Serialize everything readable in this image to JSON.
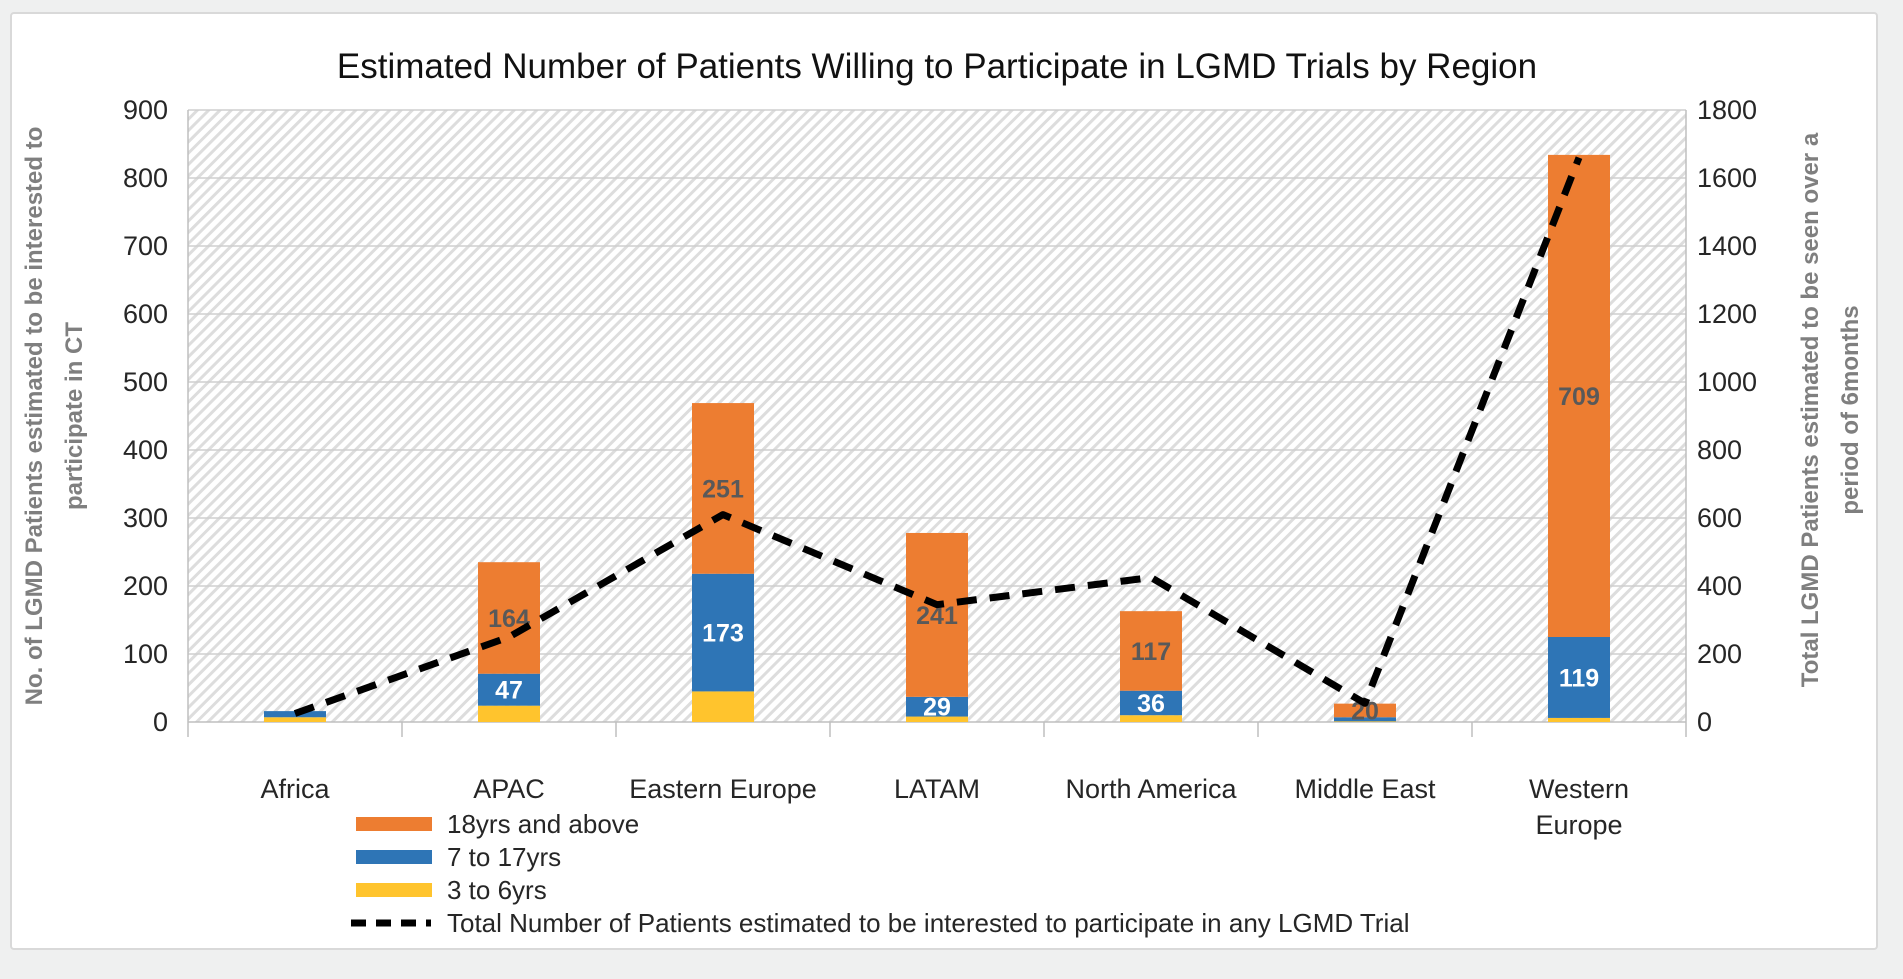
{
  "window": {
    "outer_background": "#EFF0F0",
    "card_background": "#FFFFFF",
    "card_border": "#D9D9D9"
  },
  "chart_data": {
    "type": "combo",
    "subtype": [
      "stacked-bar",
      "line"
    ],
    "title": "Estimated Number of Patients Willing to Participate in LGMD Trials by Region",
    "categories": [
      "Africa",
      "APAC",
      "Eastern Europe",
      "LATAM",
      "North America",
      "Middle East",
      "Western Europe"
    ],
    "category_wrap": [
      false,
      false,
      false,
      false,
      false,
      false,
      true
    ],
    "bar_series": [
      {
        "name": "3 to 6yrs",
        "color": "#FFC42D",
        "axis": "left",
        "values": [
          7,
          24,
          45,
          8,
          10,
          1,
          6
        ],
        "data_labels": [
          "",
          "",
          "",
          "",
          "",
          "",
          ""
        ],
        "label_color": "#595959"
      },
      {
        "name": "7 to 17yrs",
        "color": "#2E75B6",
        "axis": "left",
        "values": [
          9,
          47,
          173,
          29,
          36,
          6,
          119
        ],
        "data_labels": [
          "",
          "47",
          "173",
          "29",
          "36",
          "",
          "119"
        ],
        "label_color": "#FFFFFF"
      },
      {
        "name": "18yrs and above",
        "color": "#ED7D31",
        "axis": "left",
        "values": [
          0,
          164,
          251,
          241,
          117,
          20,
          709
        ],
        "data_labels": [
          "",
          "164",
          "251",
          "241",
          "117",
          "20",
          "709"
        ],
        "label_color": "#595959"
      }
    ],
    "line_series": {
      "name": "Total Number of Patients estimated to be interested to participate in any LGMD Trial",
      "color": "#000000",
      "dash": true,
      "axis": "right",
      "values": [
        25,
        250,
        610,
        345,
        425,
        55,
        1660
      ]
    },
    "left_axis": {
      "min": 0,
      "max": 900,
      "step": 100,
      "title_lines": [
        "No. of LGMD Patients estimated to be interested to",
        "participate in CT"
      ]
    },
    "right_axis": {
      "min": 0,
      "max": 1800,
      "step": 200,
      "title_lines": [
        "Total LGMD Patients estimated to be seen over a",
        "period of 6months"
      ]
    },
    "legend_position": "bottom-left",
    "plot_style": {
      "hatch_fill": true,
      "hatch_color": "#DDDDDD",
      "gridline_color": "#CFCFCF",
      "axis_line_color": "#BFBFBF",
      "background": "#FFFFFF"
    }
  }
}
